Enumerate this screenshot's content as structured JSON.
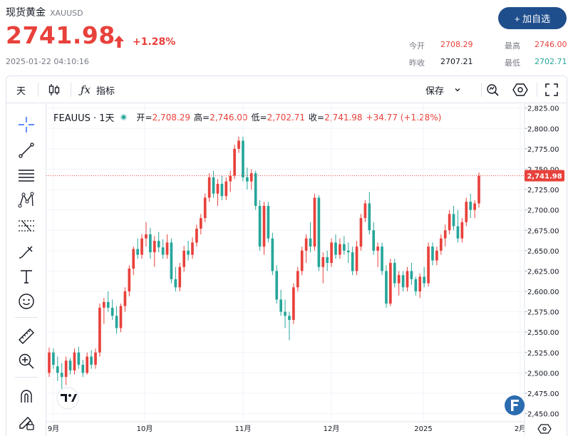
{
  "header": {
    "title": "现货黄金",
    "symbol": "XAUUSD",
    "price": "2741.98",
    "change_pct": "+1.28%",
    "timestamp": "2025-01-22 04:10:16",
    "add_button_label": "+ 加自选",
    "accent_color": "#1f4e8c",
    "up_color": "#e8413b",
    "down_color": "#26a69a"
  },
  "stats": {
    "open_label": "今开",
    "open_value": "2708.29",
    "prev_close_label": "昨收",
    "prev_close_value": "2707.21",
    "high_label": "最高",
    "high_value": "2746.00",
    "low_label": "最低",
    "low_value": "2702.71"
  },
  "toolbar": {
    "interval_label": "天",
    "indicators_label": "指标",
    "save_label": "保存",
    "icons": [
      "candles-icon",
      "fx-icon",
      "chevron-down-icon",
      "settings-icon",
      "gear-icon",
      "fullscreen-icon"
    ]
  },
  "sidebar": {
    "icons": [
      "crosshair-icon",
      "trend-line-icon",
      "fib-icon",
      "pattern-icon",
      "forecast-icon",
      "brush-icon",
      "text-icon",
      "emoji-icon",
      "ruler-icon",
      "zoom-in-icon",
      "magnet-icon",
      "lock-pencil-icon"
    ]
  },
  "legend": {
    "name": "FEAUUS · 1天",
    "open_label": "开=",
    "open_value": "2,708.29",
    "high_label": "高=",
    "high_value": "2,746.00",
    "low_label": "低=",
    "low_value": "2,702.71",
    "close_label": "收=",
    "close_value": "2,741.98",
    "change": "+34.77 (+1.28%)"
  },
  "chart_data": {
    "type": "candlestick",
    "ylim": [
      2440,
      2830
    ],
    "y_ticks": [
      "2,825.00",
      "2,800.00",
      "2,775.00",
      "2,750.00",
      "2,725.00",
      "2,700.00",
      "2,675.00",
      "2,650.00",
      "2,625.00",
      "2,600.00",
      "2,575.00",
      "2,550.00",
      "2,525.00",
      "2,500.00",
      "2,475.00",
      "2,450.00"
    ],
    "x_ticks": [
      "9月",
      "10月",
      "11月",
      "12月",
      "2025",
      "2月"
    ],
    "last_price_label": "2,741.98",
    "last_price": 2741.98,
    "ohlc": [
      [
        2500,
        2531,
        2495,
        2525
      ],
      [
        2525,
        2530,
        2505,
        2510
      ],
      [
        2508,
        2520,
        2490,
        2500
      ],
      [
        2500,
        2512,
        2480,
        2495
      ],
      [
        2495,
        2520,
        2485,
        2515
      ],
      [
        2515,
        2518,
        2498,
        2503
      ],
      [
        2503,
        2530,
        2498,
        2525
      ],
      [
        2525,
        2532,
        2505,
        2510
      ],
      [
        2510,
        2516,
        2495,
        2500
      ],
      [
        2500,
        2525,
        2498,
        2520
      ],
      [
        2520,
        2528,
        2505,
        2510
      ],
      [
        2510,
        2530,
        2505,
        2525
      ],
      [
        2525,
        2585,
        2520,
        2580
      ],
      [
        2580,
        2592,
        2560,
        2587
      ],
      [
        2587,
        2600,
        2575,
        2580
      ],
      [
        2580,
        2590,
        2565,
        2570
      ],
      [
        2570,
        2582,
        2548,
        2555
      ],
      [
        2555,
        2585,
        2550,
        2582
      ],
      [
        2582,
        2605,
        2575,
        2600
      ],
      [
        2600,
        2632,
        2594,
        2628
      ],
      [
        2628,
        2655,
        2620,
        2652
      ],
      [
        2652,
        2665,
        2640,
        2645
      ],
      [
        2645,
        2670,
        2640,
        2665
      ],
      [
        2665,
        2685,
        2655,
        2670
      ],
      [
        2670,
        2678,
        2640,
        2648
      ],
      [
        2648,
        2668,
        2630,
        2662
      ],
      [
        2662,
        2673,
        2648,
        2654
      ],
      [
        2654,
        2664,
        2640,
        2645
      ],
      [
        2645,
        2670,
        2640,
        2660
      ],
      [
        2660,
        2665,
        2610,
        2615
      ],
      [
        2615,
        2630,
        2600,
        2605
      ],
      [
        2605,
        2635,
        2600,
        2630
      ],
      [
        2630,
        2656,
        2624,
        2650
      ],
      [
        2650,
        2662,
        2638,
        2645
      ],
      [
        2645,
        2666,
        2640,
        2660
      ],
      [
        2660,
        2682,
        2655,
        2677
      ],
      [
        2677,
        2695,
        2670,
        2690
      ],
      [
        2690,
        2720,
        2685,
        2715
      ],
      [
        2715,
        2745,
        2710,
        2740
      ],
      [
        2740,
        2748,
        2715,
        2720
      ],
      [
        2720,
        2738,
        2705,
        2732
      ],
      [
        2732,
        2742,
        2712,
        2717
      ],
      [
        2717,
        2740,
        2712,
        2735
      ],
      [
        2735,
        2748,
        2722,
        2742
      ],
      [
        2742,
        2780,
        2738,
        2775
      ],
      [
        2775,
        2790,
        2770,
        2785
      ],
      [
        2785,
        2790,
        2735,
        2740
      ],
      [
        2740,
        2752,
        2725,
        2735
      ],
      [
        2735,
        2750,
        2725,
        2745
      ],
      [
        2745,
        2748,
        2700,
        2705
      ],
      [
        2705,
        2712,
        2650,
        2655
      ],
      [
        2655,
        2710,
        2645,
        2705
      ],
      [
        2705,
        2710,
        2660,
        2665
      ],
      [
        2665,
        2672,
        2620,
        2625
      ],
      [
        2625,
        2632,
        2585,
        2590
      ],
      [
        2590,
        2602,
        2570,
        2575
      ],
      [
        2575,
        2590,
        2555,
        2570
      ],
      [
        2570,
        2575,
        2540,
        2565
      ],
      [
        2565,
        2610,
        2560,
        2605
      ],
      [
        2605,
        2630,
        2600,
        2625
      ],
      [
        2625,
        2655,
        2620,
        2650
      ],
      [
        2650,
        2670,
        2635,
        2665
      ],
      [
        2665,
        2685,
        2648,
        2655
      ],
      [
        2655,
        2720,
        2650,
        2715
      ],
      [
        2715,
        2718,
        2625,
        2630
      ],
      [
        2630,
        2648,
        2610,
        2642
      ],
      [
        2642,
        2650,
        2625,
        2635
      ],
      [
        2635,
        2665,
        2630,
        2660
      ],
      [
        2660,
        2670,
        2640,
        2645
      ],
      [
        2645,
        2665,
        2640,
        2658
      ],
      [
        2658,
        2668,
        2645,
        2650
      ],
      [
        2650,
        2660,
        2635,
        2648
      ],
      [
        2648,
        2655,
        2620,
        2625
      ],
      [
        2625,
        2662,
        2620,
        2655
      ],
      [
        2655,
        2695,
        2650,
        2690
      ],
      [
        2690,
        2712,
        2685,
        2708
      ],
      [
        2708,
        2722,
        2670,
        2675
      ],
      [
        2675,
        2685,
        2645,
        2650
      ],
      [
        2650,
        2660,
        2630,
        2655
      ],
      [
        2655,
        2660,
        2620,
        2625
      ],
      [
        2625,
        2632,
        2580,
        2585
      ],
      [
        2585,
        2640,
        2582,
        2635
      ],
      [
        2635,
        2640,
        2605,
        2610
      ],
      [
        2610,
        2625,
        2595,
        2620
      ],
      [
        2620,
        2625,
        2600,
        2605
      ],
      [
        2605,
        2630,
        2600,
        2625
      ],
      [
        2625,
        2635,
        2608,
        2615
      ],
      [
        2615,
        2618,
        2595,
        2600
      ],
      [
        2600,
        2622,
        2592,
        2618
      ],
      [
        2618,
        2630,
        2605,
        2610
      ],
      [
        2610,
        2660,
        2606,
        2655
      ],
      [
        2655,
        2660,
        2632,
        2638
      ],
      [
        2638,
        2655,
        2632,
        2650
      ],
      [
        2650,
        2670,
        2645,
        2665
      ],
      [
        2665,
        2682,
        2655,
        2675
      ],
      [
        2675,
        2700,
        2670,
        2695
      ],
      [
        2695,
        2705,
        2675,
        2680
      ],
      [
        2680,
        2700,
        2660,
        2665
      ],
      [
        2665,
        2690,
        2660,
        2685
      ],
      [
        2685,
        2715,
        2680,
        2710
      ],
      [
        2710,
        2720,
        2690,
        2700
      ],
      [
        2700,
        2712,
        2690,
        2708
      ],
      [
        2708,
        2746,
        2703,
        2742
      ]
    ]
  }
}
